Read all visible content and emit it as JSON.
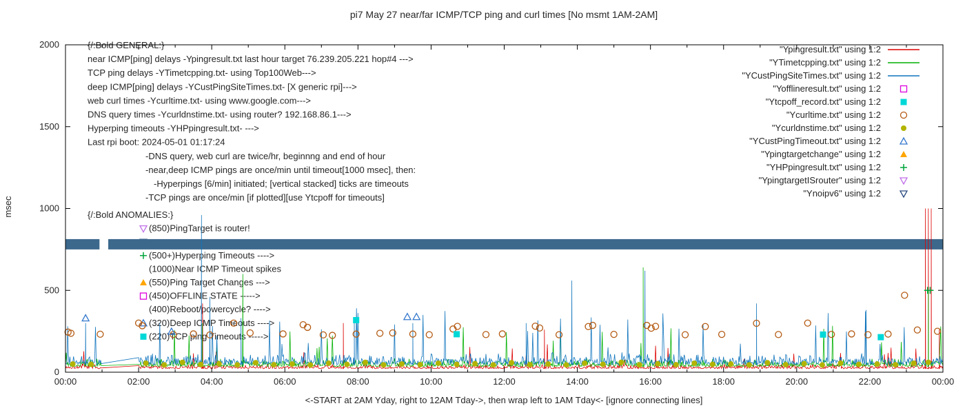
{
  "chart_data": {
    "type": "line",
    "title": "pi7 May 27  near/far ICMP/TCP ping and curl times [No msmt 1AM-2AM]",
    "ylabel": "msec",
    "xlabel": "<-START at 2AM Yday, right to 12AM Tday->, then wrap left to 1AM Tday<- [ignore connecting lines]",
    "xlim": [
      0,
      24
    ],
    "ylim": [
      0,
      2000
    ],
    "yticks": [
      0,
      500,
      1000,
      1500,
      2000
    ],
    "xtick_hours": [
      0,
      2,
      4,
      6,
      8,
      10,
      12,
      14,
      16,
      18,
      20,
      22,
      24
    ],
    "xtick_labels": [
      "00:00",
      "02:00",
      "04:00",
      "06:00",
      "08:00",
      "10:00",
      "12:00",
      "14:00",
      "16:00",
      "18:00",
      "20:00",
      "22:00",
      "00:00"
    ],
    "no_measurement_gap_hours": [
      1,
      2
    ],
    "band": {
      "name": "Ynoipv6-stacked-band",
      "color": "#3c688c",
      "y_low": 750,
      "y_high": 813,
      "segments": [
        [
          0,
          0.93
        ],
        [
          1.17,
          24
        ]
      ]
    },
    "lines": [
      {
        "name": "Ypingresult",
        "color": "#dd0000",
        "base": 22,
        "noise": 16,
        "spike_prob": 0.012,
        "spike_amp": 100,
        "seed": 7,
        "spikes": [
          [
            3.75,
            420
          ],
          [
            7.6,
            300
          ],
          [
            13.1,
            260
          ],
          [
            23.52,
            1000
          ],
          [
            23.6,
            1000
          ],
          [
            23.68,
            1000
          ],
          [
            23.9,
            260
          ]
        ]
      },
      {
        "name": "YTimetcpping",
        "color": "#00b000",
        "base": 35,
        "noise": 26,
        "spike_prob": 0.02,
        "spike_amp": 170,
        "seed": 13,
        "spikes": [
          [
            3.74,
            300
          ],
          [
            4.85,
            600
          ],
          [
            15.8,
            640
          ],
          [
            23.6,
            500
          ]
        ]
      },
      {
        "name": "YCustPingSiteTimes",
        "color": "#0f74bd",
        "base": 46,
        "noise": 38,
        "spike_prob": 0.03,
        "spike_amp": 230,
        "seed": 29,
        "spikes": [
          [
            0.55,
            300
          ],
          [
            3.72,
            960
          ],
          [
            3.95,
            460
          ],
          [
            4.8,
            330
          ],
          [
            7.9,
            330
          ],
          [
            9.5,
            300
          ],
          [
            12.6,
            300
          ],
          [
            13.85,
            560
          ],
          [
            15.85,
            620
          ],
          [
            18.9,
            420
          ],
          [
            21.9,
            380
          ]
        ]
      }
    ],
    "markers": [
      {
        "name": "Ycurltime",
        "shape": "circle-open",
        "color": "#b45a12",
        "points": [
          [
            0.07,
            245
          ],
          [
            0.15,
            238
          ],
          [
            0.95,
            232
          ],
          [
            2.0,
            300
          ],
          [
            2.1,
            284
          ],
          [
            2.95,
            230
          ],
          [
            3.5,
            234
          ],
          [
            3.95,
            228
          ],
          [
            4.6,
            300
          ],
          [
            5.05,
            240
          ],
          [
            5.95,
            234
          ],
          [
            6.5,
            290
          ],
          [
            6.62,
            274
          ],
          [
            7.05,
            228
          ],
          [
            7.3,
            225
          ],
          [
            7.95,
            233
          ],
          [
            8.6,
            238
          ],
          [
            8.95,
            240
          ],
          [
            9.5,
            233
          ],
          [
            9.95,
            229
          ],
          [
            10.6,
            264
          ],
          [
            10.72,
            280
          ],
          [
            11.5,
            230
          ],
          [
            11.95,
            234
          ],
          [
            12.85,
            281
          ],
          [
            12.97,
            270
          ],
          [
            13.5,
            229
          ],
          [
            14.3,
            279
          ],
          [
            14.42,
            286
          ],
          [
            15.0,
            231
          ],
          [
            15.9,
            286
          ],
          [
            16.02,
            269
          ],
          [
            16.14,
            280
          ],
          [
            16.95,
            229
          ],
          [
            17.5,
            279
          ],
          [
            17.95,
            231
          ],
          [
            18.9,
            299
          ],
          [
            19.5,
            230
          ],
          [
            20.3,
            300
          ],
          [
            20.95,
            231
          ],
          [
            21.5,
            234
          ],
          [
            21.95,
            229
          ],
          [
            22.5,
            233
          ],
          [
            22.95,
            470
          ],
          [
            23.3,
            258
          ],
          [
            23.85,
            250
          ]
        ]
      },
      {
        "name": "Ycurldnstime",
        "shape": "circle-filled",
        "color": "#b3b300",
        "points": [
          [
            0.2,
            50
          ],
          [
            0.7,
            48
          ],
          [
            2.2,
            55
          ],
          [
            2.7,
            45
          ],
          [
            3.2,
            60
          ],
          [
            3.7,
            47
          ],
          [
            4.2,
            52
          ],
          [
            4.7,
            45
          ],
          [
            5.2,
            58
          ],
          [
            5.7,
            46
          ],
          [
            6.2,
            50
          ],
          [
            6.7,
            44
          ],
          [
            7.2,
            55
          ],
          [
            7.7,
            48
          ],
          [
            8.2,
            60
          ],
          [
            8.7,
            45
          ],
          [
            9.2,
            50
          ],
          [
            9.7,
            46
          ],
          [
            10.2,
            55
          ],
          [
            10.7,
            48
          ],
          [
            11.2,
            52
          ],
          [
            11.7,
            45
          ],
          [
            12.2,
            58
          ],
          [
            12.7,
            46
          ],
          [
            13.2,
            50
          ],
          [
            13.7,
            44
          ],
          [
            14.2,
            55
          ],
          [
            14.7,
            48
          ],
          [
            15.2,
            60
          ],
          [
            15.7,
            45
          ],
          [
            16.2,
            52
          ],
          [
            16.7,
            46
          ],
          [
            17.2,
            55
          ],
          [
            17.7,
            48
          ],
          [
            18.2,
            50
          ],
          [
            18.7,
            45
          ],
          [
            19.2,
            58
          ],
          [
            19.7,
            46
          ],
          [
            20.2,
            52
          ],
          [
            20.7,
            44
          ],
          [
            21.2,
            55
          ],
          [
            21.7,
            48
          ],
          [
            22.2,
            50
          ],
          [
            22.7,
            46
          ],
          [
            23.2,
            55
          ],
          [
            23.6,
            60
          ]
        ]
      },
      {
        "name": "Ytcpoff_record",
        "shape": "square-filled",
        "color": "#00d8d8",
        "points": [
          [
            7.95,
            318
          ],
          [
            10.7,
            232
          ],
          [
            20.72,
            230
          ],
          [
            22.3,
            214
          ]
        ]
      },
      {
        "name": "YCustPingTimeout",
        "shape": "triangle-open",
        "color": "#3377cc",
        "points": [
          [
            0.55,
            330
          ],
          [
            2.9,
            248
          ],
          [
            9.35,
            338
          ],
          [
            9.6,
            338
          ]
        ]
      },
      {
        "name": "YHPpingresult",
        "shape": "plus",
        "color": "#00a43c",
        "points": [
          [
            23.58,
            500
          ],
          [
            23.65,
            500
          ]
        ]
      }
    ]
  },
  "legend": {
    "entries": [
      {
        "label": "\"Ypingresult.txt\" using 1:2",
        "type": "line",
        "color": "#dd0000"
      },
      {
        "label": "\"YTimetcpping.txt\" using 1:2",
        "type": "line",
        "color": "#00b000"
      },
      {
        "label": "\"YCustPingSiteTimes.txt\" using 1:2",
        "type": "line",
        "color": "#0f74bd"
      },
      {
        "label": "\"Yofflineresult.txt\" using 1:2",
        "type": "square-open",
        "color": "#dd00dd"
      },
      {
        "label": "\"Ytcpoff_record.txt\" using 1:2",
        "type": "square-filled",
        "color": "#00d8d8"
      },
      {
        "label": "\"Ycurltime.txt\" using 1:2",
        "type": "circle-open",
        "color": "#b45a12"
      },
      {
        "label": "\"Ycurldnstime.txt\" using 1:2",
        "type": "circle-filled",
        "color": "#b3b300"
      },
      {
        "label": "\"YCustPingTimeout.txt\" using 1:2",
        "type": "triangle-open",
        "color": "#3377cc"
      },
      {
        "label": "\"Ypingtargetchange\" using 1:2",
        "type": "triangle-filled",
        "color": "#ffa500"
      },
      {
        "label": "\"YHPpingresult.txt\" using 1:2",
        "type": "plus",
        "color": "#00a43c"
      },
      {
        "label": "\"YpingtargetISrouter\" using 1:2",
        "type": "triangle-down-open",
        "color": "#c06fe8"
      },
      {
        "label": "\"Ynoipv6\" using 1:2",
        "type": "triangle-down-open",
        "color": "#27497e"
      }
    ]
  },
  "annotations": {
    "general": {
      "lines": [
        {
          "text": "{/:Bold GENERAL:}",
          "dx": 0
        },
        {
          "text": "near ICMP[ping] delays -Ypingresult.txt last hour target 76.239.205.221 hop#4 --->",
          "dx": 0
        },
        {
          "text": "TCP ping delays -YTimetcpping.txt- using Top100Web--->",
          "dx": 0
        },
        {
          "text": "deep ICMP[ping] delays -YCustPingSiteTimes.txt- [X generic rpi]--->",
          "dx": 0
        },
        {
          "text": "web curl times -Ycurltime.txt- using www.google.com--->",
          "dx": 0
        },
        {
          "text": "DNS query times -Ycurldnstime.txt- using router? 192.168.86.1--->",
          "dx": 0
        },
        {
          "text": "Hyperping timeouts -YHPpingresult.txt- --->",
          "dx": 0
        },
        {
          "text": "Last rpi boot: 2024-05-01 01:17:24",
          "dx": 0
        },
        {
          "text": "-DNS query, web curl are twice/hr, beginnng and end of hour",
          "dx": 84
        },
        {
          "text": "-near,deep ICMP pings are once/min until timeout[1000 msec], then:",
          "dx": 84
        },
        {
          "text": "-Hyperpings [6/min] initiated; [vertical stacked] ticks are timeouts",
          "dx": 96
        },
        {
          "text": "-TCP pings are once/min [if plotted][use Ytcpoff for timeouts]",
          "dx": 84
        }
      ]
    },
    "anomalies": {
      "heading": "{/:Bold ANOMALIES:}",
      "items": [
        {
          "marker": "triangle-down-open",
          "color": "#c06fe8",
          "text": "(850)PingTarget is router!"
        },
        {
          "marker": "triangle-down-open",
          "color": "#27497e",
          "text": ""
        },
        {
          "marker": "plus",
          "color": "#00a43c",
          "text": "(500+)Hyperping Timeouts ---->"
        },
        {
          "marker": null,
          "color": null,
          "text": "(1000)Near ICMP Timeout spikes"
        },
        {
          "marker": "triangle-filled",
          "color": "#ffa500",
          "text": "(550)Ping Target Changes --->"
        },
        {
          "marker": "square-open",
          "color": "#dd00dd",
          "text": "(450)OFFLINE STATE ----->"
        },
        {
          "marker": null,
          "color": null,
          "text": "(400)Reboot/powercycle? ---->"
        },
        {
          "marker": "triangle-open",
          "color": "#3377cc",
          "text": "(320)Deep ICMP Timeouts ---->"
        },
        {
          "marker": "square-filled",
          "color": "#00d8d8",
          "text": "(220)TCP ping Timeouts ----->"
        }
      ]
    }
  }
}
